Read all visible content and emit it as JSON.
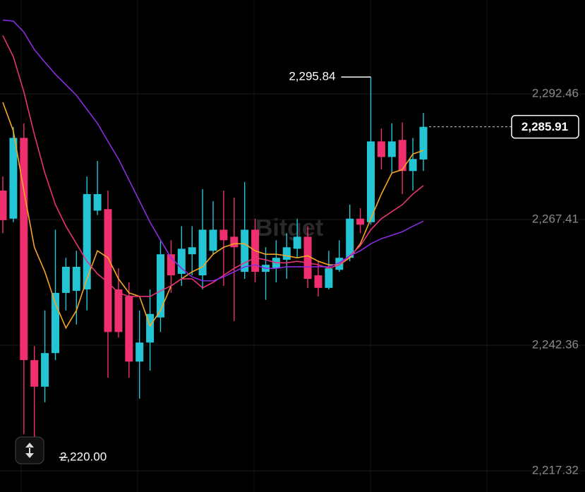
{
  "chart_data": {
    "type": "candlestick",
    "watermark": "Bitget",
    "up_color": "#23c4d4",
    "down_color": "#f0306e",
    "ylim": [
      2213.1,
      2311.2
    ],
    "yticks": [
      {
        "value": 2292.46,
        "label": "2,292.46"
      },
      {
        "value": 2267.41,
        "label": "2,267.41"
      },
      {
        "value": 2242.36,
        "label": "2,242.36"
      },
      {
        "value": 2217.32,
        "label": "2,217.32"
      }
    ],
    "grid": true,
    "open": [
      2273.2,
      2267.6,
      2283.7,
      2239.4,
      2234.1,
      2240.8,
      2252.8,
      2253.2,
      2253.5,
      2269.2,
      2269.5,
      2253.5,
      2252.1,
      2239.1,
      2242.9,
      2247.9,
      2260.5,
      2256.6,
      2260.5,
      2256.3,
      2261.2,
      2265.4,
      2264.0,
      2257.0,
      2265.4,
      2257.0,
      2257.7,
      2259.4,
      2261.6,
      2264.0,
      2256.3,
      2253.8,
      2257.4,
      2259.8,
      2267.6,
      2266.9,
      2283.0,
      2279.9,
      2283.3,
      2277.1,
      2279.4
    ],
    "high": [
      2276.0,
      2285.9,
      2286.6,
      2242.2,
      2249.3,
      2265.4,
      2259.8,
      2261.2,
      2276.0,
      2279.1,
      2273.2,
      2257.7,
      2254.9,
      2249.3,
      2253.5,
      2263.3,
      2263.3,
      2266.1,
      2266.1,
      2273.5,
      2271.1,
      2273.2,
      2271.8,
      2274.9,
      2267.6,
      2261.9,
      2263.3,
      2264.7,
      2267.6,
      2266.1,
      2259.1,
      2261.2,
      2263.3,
      2270.4,
      2269.7,
      2295.84,
      2285.6,
      2286.6,
      2286.8,
      2283.7,
      2288.7
    ],
    "low": [
      2264.7,
      2266.9,
      2224.6,
      2220.0,
      2231.0,
      2239.4,
      2249.3,
      2246.5,
      2249.3,
      2268.3,
      2235.9,
      2243.9,
      2235.9,
      2231.7,
      2237.3,
      2245.0,
      2252.8,
      2254.2,
      2256.3,
      2253.5,
      2260.5,
      2254.2,
      2247.2,
      2255.6,
      2254.9,
      2251.4,
      2254.9,
      2255.6,
      2259.8,
      2253.8,
      2252.1,
      2253.5,
      2257.0,
      2259.1,
      2264.7,
      2266.4,
      2277.4,
      2276.7,
      2272.5,
      2273.2,
      2277.1
    ],
    "close": [
      2267.3,
      2283.7,
      2239.4,
      2234.1,
      2240.8,
      2252.8,
      2258.0,
      2258.0,
      2272.5,
      2272.5,
      2245.0,
      2245.0,
      2239.1,
      2242.9,
      2248.6,
      2260.5,
      2256.3,
      2261.6,
      2261.9,
      2265.4,
      2265.4,
      2263.3,
      2261.9,
      2265.4,
      2257.0,
      2258.4,
      2259.8,
      2261.9,
      2264.0,
      2255.6,
      2253.8,
      2257.7,
      2259.8,
      2267.6,
      2266.4,
      2283.0,
      2279.9,
      2283.0,
      2277.1,
      2279.5,
      2285.91
    ],
    "series": [
      {
        "color": "#f5a623",
        "values": [
          2290.8,
          2285.1,
          2273.2,
          2261.9,
          2257.0,
          2250.7,
          2245.8,
          2249.3,
          2255.6,
          2261.2,
          2259.8,
          2255.6,
          2252.8,
          2252.1,
          2246.2,
          2249.3,
          2254.2,
          2255.6,
          2257.0,
          2258.0,
          2260.5,
          2261.9,
          2262.6,
          2262.6,
          2261.2,
          2260.5,
          2260.5,
          2260.2,
          2259.8,
          2260.2,
          2259.1,
          2258.4,
          2258.4,
          2259.8,
          2262.6,
          2267.6,
          2272.5,
          2276.7,
          2277.4,
          2280.5,
          2281.2
        ]
      },
      {
        "color": "#e8317a",
        "values": [
          2304.1,
          2299.9,
          2292.9,
          2284.4,
          2276.7,
          2270.4,
          2266.1,
          2262.6,
          2259.1,
          2256.6,
          2254.9,
          2252.8,
          2252.1,
          2252.1,
          2252.1,
          2253.2,
          2254.2,
          2255.6,
          2255.6,
          2253.8,
          2254.9,
          2256.3,
          2257.7,
          2258.8,
          2259.8,
          2259.4,
          2258.8,
          2258.8,
          2259.1,
          2258.8,
          2258.4,
          2257.7,
          2258.4,
          2260.2,
          2262.2,
          2265.4,
          2267.6,
          2269.0,
          2270.4,
          2272.5,
          2274.2
        ]
      },
      {
        "color": "#8a2be2",
        "values": [
          2307.2,
          2307.0,
          2304.8,
          2301.3,
          2298.8,
          2296.4,
          2294.3,
          2292.2,
          2289.4,
          2286.6,
          2283.0,
          2279.5,
          2275.3,
          2271.1,
          2266.9,
          2263.3,
          2259.8,
          2257.7,
          2256.0,
          2255.2,
          2255.2,
          2256.0,
          2257.0,
          2258.0,
          2258.4,
          2257.7,
          2257.7,
          2258.0,
          2258.0,
          2258.0,
          2258.0,
          2258.0,
          2258.8,
          2260.2,
          2261.2,
          2262.6,
          2263.6,
          2264.3,
          2265.0,
          2266.1,
          2267.1
        ]
      }
    ],
    "high_marker": {
      "value": 2295.84,
      "label": "2,295.84"
    },
    "low_marker": {
      "value": 2220.0,
      "label": "2,220.00"
    },
    "last_price": {
      "value": 2285.91,
      "label": "2,285.91"
    }
  }
}
